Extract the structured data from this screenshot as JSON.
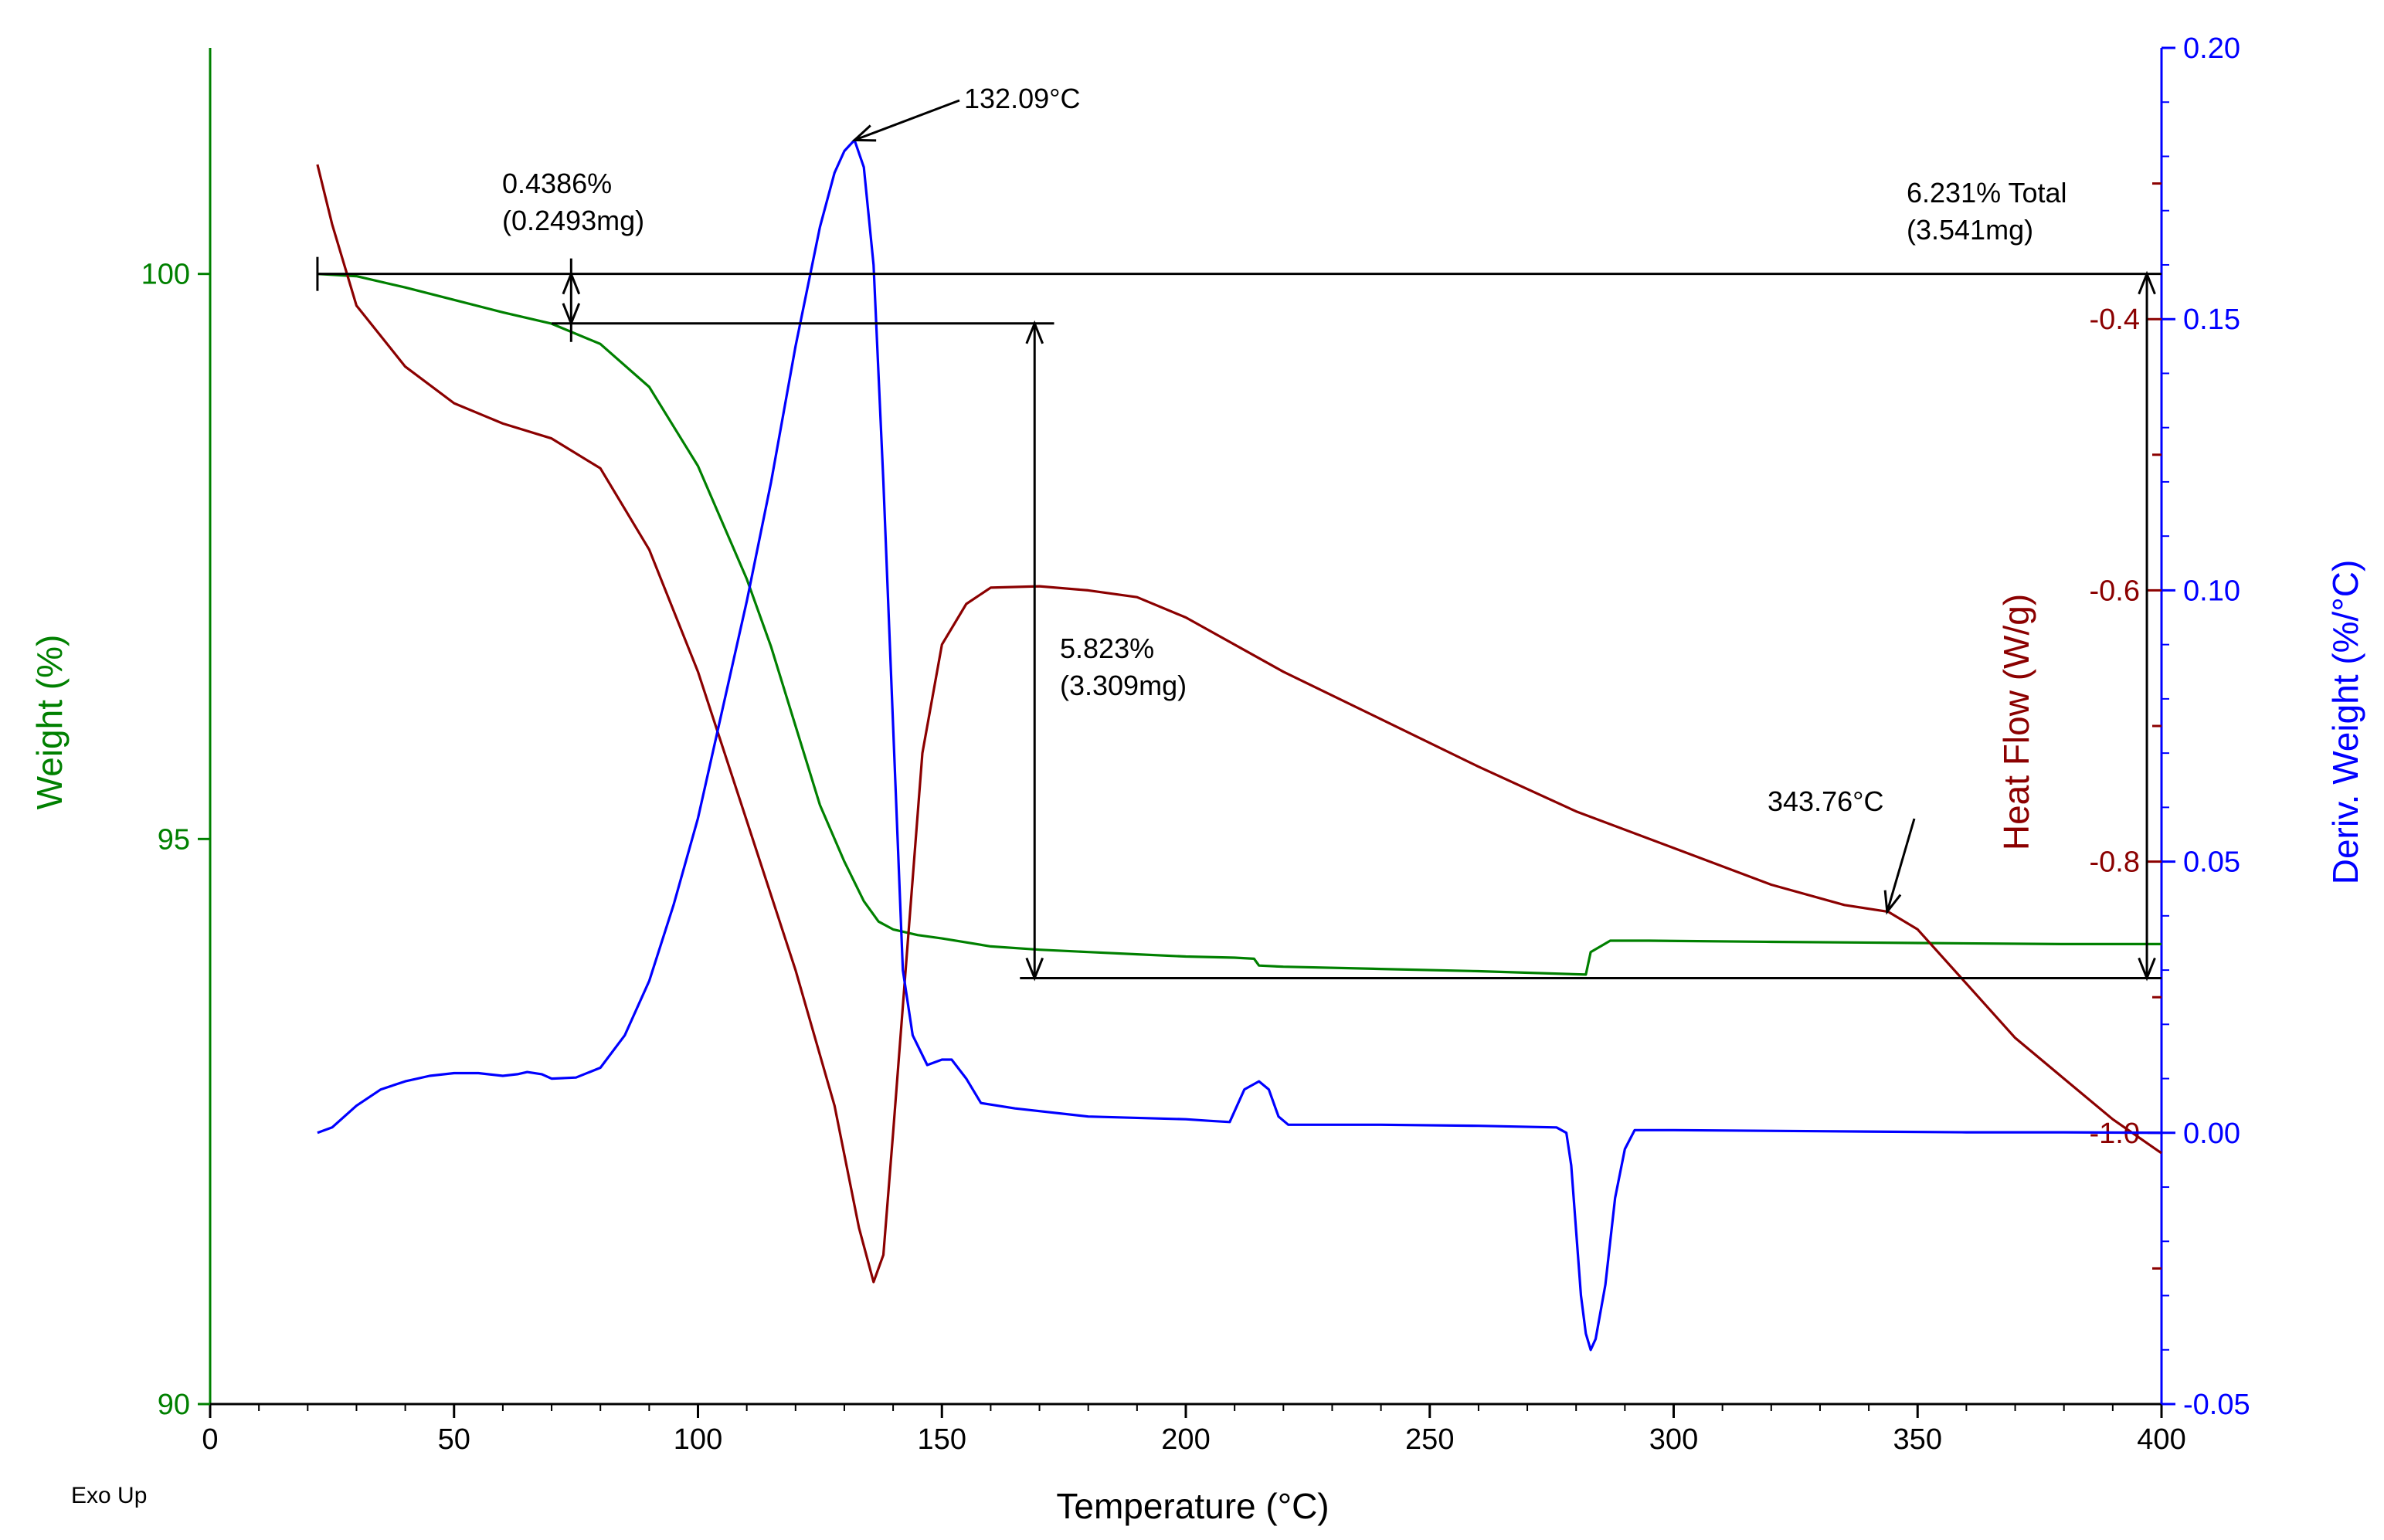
{
  "chart_data": {
    "type": "line",
    "title": "",
    "xlabel": "Temperature (°C)",
    "xlim": [
      0,
      400
    ],
    "x_ticks": [
      "0",
      "50",
      "100",
      "150",
      "200",
      "250",
      "300",
      "350",
      "400"
    ],
    "x_tick_values": [
      0,
      50,
      100,
      150,
      200,
      250,
      300,
      350,
      400
    ],
    "footnote": "Exo Up",
    "axes": {
      "weight": {
        "label": "Weight (%)",
        "color": "#008000",
        "ylim": [
          90,
          102
        ],
        "ticks": [
          "90",
          "95",
          "100"
        ],
        "tick_values": [
          90,
          95,
          100
        ]
      },
      "heat_flow": {
        "label": "Heat Flow (W/g)",
        "color": "#8b0000",
        "ylim": [
          -1.2,
          -0.2
        ],
        "ticks": [
          "-1.0",
          "-0.8",
          "-0.6",
          "-0.4"
        ],
        "tick_values": [
          -1.0,
          -0.8,
          -0.6,
          -0.4
        ]
      },
      "deriv_weight": {
        "label": "Deriv. Weight (%/°C)",
        "color": "#0000ff",
        "ylim": [
          -0.05,
          0.2
        ],
        "ticks": [
          "-0.05",
          "0.00",
          "0.05",
          "0.10",
          "0.15",
          "0.20"
        ],
        "tick_values": [
          -0.05,
          0.0,
          0.05,
          0.1,
          0.15,
          0.2
        ]
      }
    },
    "series": [
      {
        "name": "Weight",
        "axis": "weight",
        "color": "#008000",
        "points": [
          [
            22,
            100.0
          ],
          [
            30,
            99.98
          ],
          [
            40,
            99.88
          ],
          [
            50,
            99.77
          ],
          [
            60,
            99.66
          ],
          [
            70,
            99.56
          ],
          [
            80,
            99.38
          ],
          [
            90,
            99.0
          ],
          [
            100,
            98.3
          ],
          [
            110,
            97.3
          ],
          [
            115,
            96.7
          ],
          [
            120,
            96.0
          ],
          [
            125,
            95.3
          ],
          [
            130,
            94.8
          ],
          [
            134,
            94.45
          ],
          [
            137,
            94.27
          ],
          [
            140,
            94.2
          ],
          [
            145,
            94.15
          ],
          [
            150,
            94.12
          ],
          [
            160,
            94.05
          ],
          [
            170,
            94.02
          ],
          [
            180,
            94.0
          ],
          [
            190,
            93.98
          ],
          [
            200,
            93.96
          ],
          [
            210,
            93.95
          ],
          [
            214,
            93.94
          ],
          [
            215,
            93.88
          ],
          [
            220,
            93.87
          ],
          [
            240,
            93.85
          ],
          [
            260,
            93.83
          ],
          [
            282,
            93.8
          ],
          [
            283,
            94.0
          ],
          [
            285,
            94.05
          ],
          [
            287,
            94.1
          ],
          [
            295,
            94.1
          ],
          [
            320,
            94.09
          ],
          [
            350,
            94.08
          ],
          [
            380,
            94.07
          ],
          [
            400,
            94.07
          ]
        ]
      },
      {
        "name": "Heat Flow",
        "axis": "heat_flow",
        "color": "#8b0000",
        "points": [
          [
            22,
            -0.286
          ],
          [
            25,
            -0.33
          ],
          [
            30,
            -0.39
          ],
          [
            40,
            -0.435
          ],
          [
            50,
            -0.462
          ],
          [
            60,
            -0.477
          ],
          [
            70,
            -0.488
          ],
          [
            80,
            -0.51
          ],
          [
            90,
            -0.57
          ],
          [
            100,
            -0.66
          ],
          [
            110,
            -0.77
          ],
          [
            120,
            -0.88
          ],
          [
            128,
            -0.98
          ],
          [
            133,
            -1.07
          ],
          [
            136,
            -1.11
          ],
          [
            138,
            -1.09
          ],
          [
            140,
            -1.0
          ],
          [
            143,
            -0.86
          ],
          [
            146,
            -0.72
          ],
          [
            150,
            -0.64
          ],
          [
            155,
            -0.61
          ],
          [
            160,
            -0.598
          ],
          [
            170,
            -0.597
          ],
          [
            180,
            -0.6
          ],
          [
            190,
            -0.605
          ],
          [
            200,
            -0.62
          ],
          [
            220,
            -0.66
          ],
          [
            240,
            -0.695
          ],
          [
            260,
            -0.73
          ],
          [
            280,
            -0.763
          ],
          [
            300,
            -0.79
          ],
          [
            320,
            -0.817
          ],
          [
            335,
            -0.832
          ],
          [
            344,
            -0.837
          ],
          [
            350,
            -0.85
          ],
          [
            360,
            -0.89
          ],
          [
            370,
            -0.93
          ],
          [
            380,
            -0.96
          ],
          [
            390,
            -0.99
          ],
          [
            400,
            -1.015
          ]
        ]
      },
      {
        "name": "Deriv. Weight",
        "axis": "deriv_weight",
        "color": "#0000ff",
        "points": [
          [
            22,
            0.0
          ],
          [
            25,
            0.001
          ],
          [
            30,
            0.005
          ],
          [
            35,
            0.008
          ],
          [
            40,
            0.0095
          ],
          [
            45,
            0.0105
          ],
          [
            50,
            0.011
          ],
          [
            55,
            0.011
          ],
          [
            60,
            0.0105
          ],
          [
            63,
            0.0108
          ],
          [
            65,
            0.0112
          ],
          [
            68,
            0.0108
          ],
          [
            70,
            0.01
          ],
          [
            75,
            0.0102
          ],
          [
            80,
            0.012
          ],
          [
            85,
            0.018
          ],
          [
            90,
            0.028
          ],
          [
            95,
            0.042
          ],
          [
            100,
            0.058
          ],
          [
            105,
            0.078
          ],
          [
            110,
            0.098
          ],
          [
            115,
            0.12
          ],
          [
            120,
            0.145
          ],
          [
            125,
            0.167
          ],
          [
            128,
            0.177
          ],
          [
            130,
            0.181
          ],
          [
            132.09,
            0.183
          ],
          [
            134,
            0.178
          ],
          [
            136,
            0.16
          ],
          [
            138,
            0.12
          ],
          [
            140,
            0.075
          ],
          [
            142,
            0.03
          ],
          [
            144,
            0.018
          ],
          [
            147,
            0.0125
          ],
          [
            150,
            0.0135
          ],
          [
            152,
            0.0135
          ],
          [
            155,
            0.01
          ],
          [
            158,
            0.0055
          ],
          [
            165,
            0.0045
          ],
          [
            180,
            0.003
          ],
          [
            200,
            0.0025
          ],
          [
            205,
            0.0022
          ],
          [
            209,
            0.002
          ],
          [
            212,
            0.008
          ],
          [
            215,
            0.0095
          ],
          [
            217,
            0.008
          ],
          [
            219,
            0.003
          ],
          [
            221,
            0.0015
          ],
          [
            240,
            0.0015
          ],
          [
            260,
            0.0013
          ],
          [
            276,
            0.001
          ],
          [
            278,
            0.0
          ],
          [
            279,
            -0.006
          ],
          [
            280,
            -0.018
          ],
          [
            281,
            -0.03
          ],
          [
            282,
            -0.037
          ],
          [
            283,
            -0.04
          ],
          [
            284,
            -0.038
          ],
          [
            286,
            -0.028
          ],
          [
            288,
            -0.012
          ],
          [
            290,
            -0.003
          ],
          [
            292,
            0.0005
          ],
          [
            300,
            0.0005
          ],
          [
            330,
            0.0003
          ],
          [
            360,
            0.0001
          ],
          [
            380,
            0.0001
          ],
          [
            400,
            0.0
          ]
        ]
      }
    ],
    "annotations": {
      "peak": "132.09°C",
      "step1_pct": "0.4386%",
      "step1_mg": "(0.2493mg)",
      "step2_pct": "5.823%",
      "step2_mg": "(3.309mg)",
      "total_pct": "6.231% Total",
      "total_mg": "(3.541mg)",
      "shoulder": "343.76°C"
    }
  }
}
